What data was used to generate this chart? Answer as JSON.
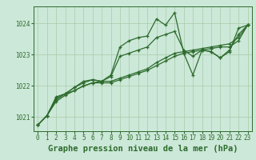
{
  "title": "Graphe pression niveau de la mer (hPa)",
  "bg_color": "#cce8d8",
  "line_color": "#2d6b2d",
  "grid_color": "#aacaaa",
  "x_ticks": [
    0,
    1,
    2,
    3,
    4,
    5,
    6,
    7,
    8,
    9,
    10,
    11,
    12,
    13,
    14,
    15,
    16,
    17,
    18,
    19,
    20,
    21,
    22,
    23
  ],
  "y_ticks": [
    1021,
    1022,
    1023,
    1024
  ],
  "ylim": [
    1020.55,
    1024.55
  ],
  "xlim": [
    -0.5,
    23.5
  ],
  "series": [
    [
      1020.75,
      1021.05,
      1021.65,
      1021.75,
      1021.95,
      1022.15,
      1022.2,
      1022.15,
      1022.35,
      1023.25,
      1023.45,
      1023.55,
      1023.6,
      1024.15,
      1023.95,
      1024.35,
      1023.05,
      1022.35,
      1023.15,
      1023.1,
      1022.9,
      1023.1,
      1023.85,
      1023.95
    ],
    [
      1020.75,
      1021.05,
      1021.6,
      1021.75,
      1021.95,
      1022.1,
      1022.2,
      1022.15,
      1022.3,
      1022.95,
      1023.05,
      1023.15,
      1023.25,
      1023.55,
      1023.65,
      1023.75,
      1023.15,
      1022.95,
      1023.15,
      1023.1,
      1022.9,
      1023.15,
      1023.65,
      1023.95
    ],
    [
      1020.75,
      1021.05,
      1021.55,
      1021.75,
      1021.85,
      1022.0,
      1022.1,
      1022.15,
      1022.15,
      1022.25,
      1022.35,
      1022.45,
      1022.55,
      1022.75,
      1022.9,
      1023.05,
      1023.1,
      1023.15,
      1023.2,
      1023.25,
      1023.3,
      1023.35,
      1023.55,
      1023.95
    ],
    [
      1020.75,
      1021.05,
      1021.5,
      1021.7,
      1021.85,
      1022.0,
      1022.1,
      1022.1,
      1022.1,
      1022.2,
      1022.3,
      1022.4,
      1022.5,
      1022.65,
      1022.8,
      1022.95,
      1023.05,
      1023.1,
      1023.15,
      1023.2,
      1023.25,
      1023.25,
      1023.45,
      1023.95
    ]
  ],
  "marker": "+",
  "markersize": 3,
  "linewidth": 0.9,
  "title_fontsize": 7.5,
  "tick_fontsize": 5.5
}
